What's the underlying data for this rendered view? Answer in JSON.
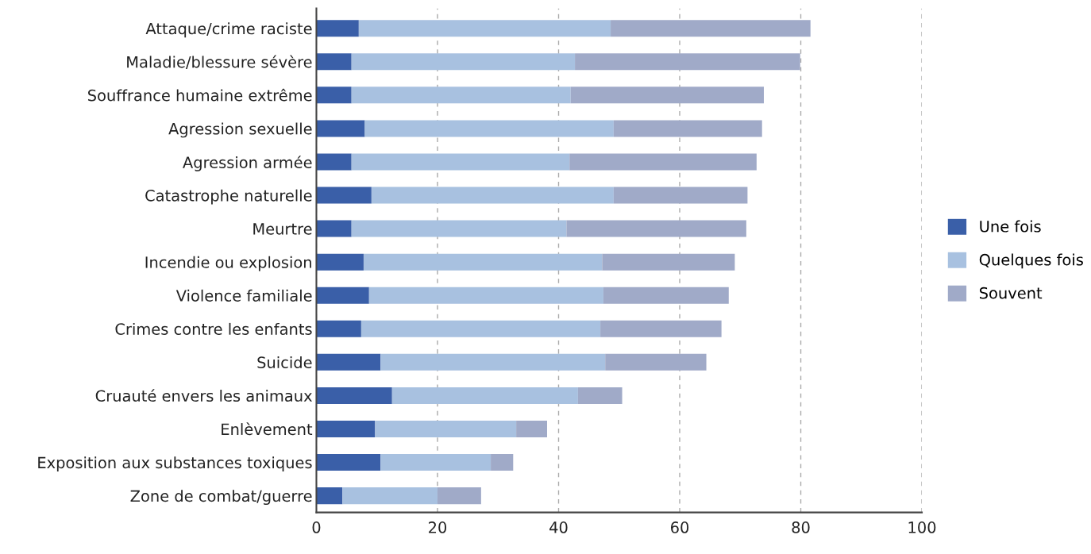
{
  "chart_data": {
    "type": "bar",
    "orientation": "horizontal",
    "stacked": true,
    "categories": [
      "Attaque/crime raciste",
      "Maladie/blessure sévère",
      "Souffrance humaine extrême",
      "Agression sexuelle",
      "Agression armée",
      "Catastrophe naturelle",
      "Meurtre",
      "Incendie ou explosion",
      "Violence familiale",
      "Crimes contre les enfants",
      "Suicide",
      "Cruauté envers les animaux",
      "Enlèvement",
      "Exposition aux substances toxiques",
      "Zone de combat/guerre"
    ],
    "series": [
      {
        "name": "Une fois",
        "color": "#3a5fa8",
        "values": [
          7.0,
          5.8,
          5.8,
          8.0,
          5.8,
          9.1,
          5.8,
          7.8,
          8.7,
          7.4,
          10.6,
          12.5,
          9.7,
          10.6,
          4.3
        ]
      },
      {
        "name": "Quelques fois",
        "color": "#a8c1e0",
        "values": [
          41.6,
          36.9,
          36.2,
          41.1,
          36.0,
          40.0,
          35.5,
          39.4,
          38.7,
          39.5,
          37.1,
          30.7,
          23.3,
          18.2,
          15.7
        ]
      },
      {
        "name": "Souvent",
        "color": "#a0aac8",
        "values": [
          33.0,
          37.2,
          31.9,
          24.5,
          30.9,
          22.1,
          29.7,
          21.9,
          20.7,
          20.0,
          16.7,
          7.3,
          5.1,
          3.7,
          7.2
        ]
      }
    ],
    "xlim": [
      0,
      100
    ],
    "xticks": [
      0,
      20,
      40,
      60,
      80,
      100
    ],
    "grid": "x",
    "legend": "right"
  }
}
